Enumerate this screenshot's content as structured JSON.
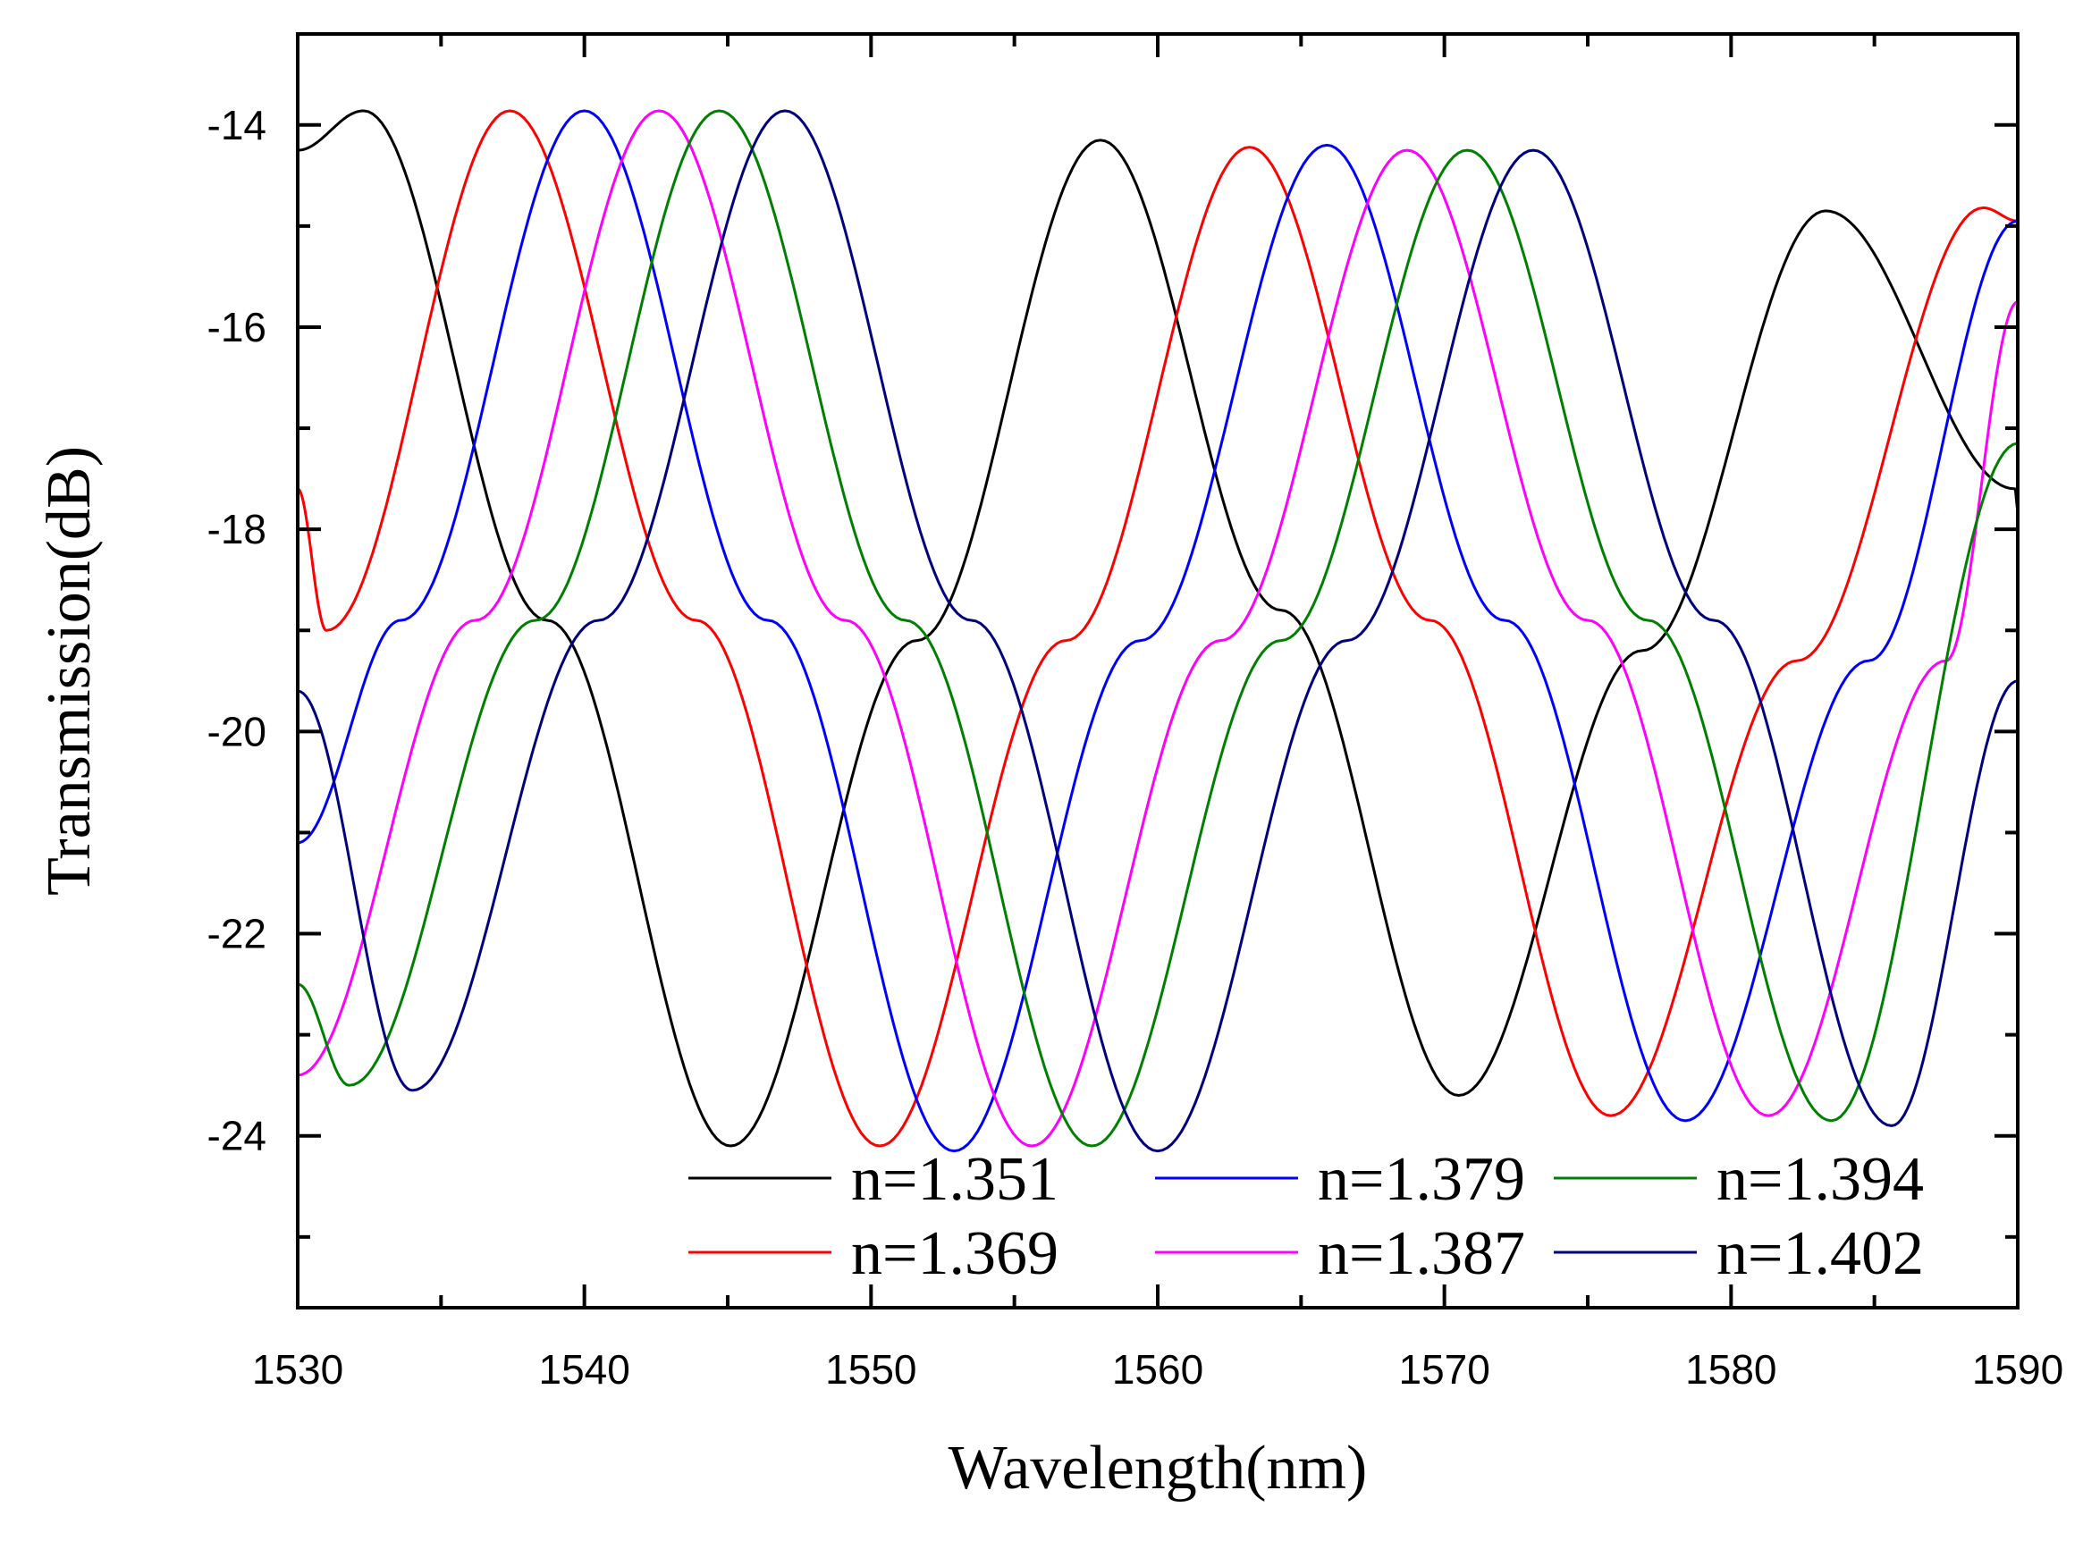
{
  "chart_data": {
    "type": "line",
    "title": "",
    "xlabel": "Wavelength(nm)",
    "ylabel": "Transmission(dB)",
    "xlim": [
      1530,
      1590
    ],
    "ylim": [
      -25.7,
      -13.1
    ],
    "xticks": [
      1530,
      1540,
      1550,
      1560,
      1570,
      1580,
      1590
    ],
    "xtick_labels": [
      "1530",
      "1540",
      "1550",
      "1560",
      "1570",
      "1580",
      "1590"
    ],
    "yticks": [
      -24,
      -22,
      -20,
      -18,
      -16,
      -14
    ],
    "ytick_labels": [
      "-24",
      "-22",
      "-20",
      "-18",
      "-16",
      "-14"
    ],
    "grid": false,
    "legend_position": "bottom-center",
    "series": [
      {
        "name": "n=1.351",
        "color": "#000000",
        "x": [
          1530,
          1532.3,
          1538.7,
          1545.1,
          1551.6,
          1558.0,
          1564.3,
          1570.5,
          1576.9,
          1583.3,
          1589.9,
          1590
        ],
        "y": [
          -14.25,
          -13.86,
          -18.9,
          -24.1,
          -19.1,
          -14.15,
          -18.8,
          -23.6,
          -19.2,
          -14.85,
          -17.6,
          -17.8
        ]
      },
      {
        "name": "n=1.369",
        "color": "#ff0000",
        "x": [
          1530,
          1531.0,
          1537.4,
          1543.9,
          1550.3,
          1556.8,
          1563.2,
          1569.5,
          1575.8,
          1582.3,
          1588.8,
          1590
        ],
        "y": [
          -17.6,
          -19.0,
          -13.86,
          -18.9,
          -24.1,
          -19.1,
          -14.22,
          -18.9,
          -23.8,
          -19.3,
          -14.82,
          -14.95
        ]
      },
      {
        "name": "n=1.379",
        "color": "#0000ff",
        "x": [
          1530,
          1533.6,
          1540.0,
          1546.4,
          1552.9,
          1559.4,
          1565.9,
          1572.1,
          1578.4,
          1584.8,
          1590
        ],
        "y": [
          -21.1,
          -18.9,
          -13.86,
          -18.9,
          -24.15,
          -19.1,
          -14.2,
          -18.9,
          -23.85,
          -19.3,
          -14.95
        ]
      },
      {
        "name": "n=1.387",
        "color": "#ff00ff",
        "x": [
          1530,
          1536.2,
          1542.6,
          1549.1,
          1555.6,
          1562.2,
          1568.7,
          1575.0,
          1581.3,
          1587.5,
          1590
        ],
        "y": [
          -23.4,
          -18.9,
          -13.86,
          -18.9,
          -24.1,
          -19.1,
          -14.25,
          -18.9,
          -23.8,
          -19.3,
          -15.75
        ]
      },
      {
        "name": "n=1.394",
        "color": "#008000",
        "x": [
          1530,
          1531.8,
          1538.3,
          1544.7,
          1551.2,
          1557.7,
          1564.3,
          1570.8,
          1577.1,
          1583.5,
          1590
        ],
        "y": [
          -22.5,
          -23.5,
          -18.9,
          -13.86,
          -18.9,
          -24.1,
          -19.1,
          -14.25,
          -18.9,
          -23.85,
          -17.15
        ]
      },
      {
        "name": "n=1.402",
        "color": "#000080",
        "x": [
          1530,
          1534.0,
          1540.5,
          1547.0,
          1553.5,
          1560.0,
          1566.6,
          1573.1,
          1579.4,
          1585.6,
          1590
        ],
        "y": [
          -19.6,
          -23.55,
          -18.9,
          -13.86,
          -18.9,
          -24.15,
          -19.1,
          -14.25,
          -18.9,
          -23.9,
          -19.5
        ]
      }
    ],
    "legend": [
      {
        "label": "n=1.351",
        "color": "#000000"
      },
      {
        "label": "n=1.369",
        "color": "#ff0000"
      },
      {
        "label": "n=1.379",
        "color": "#0000ff"
      },
      {
        "label": "n=1.387",
        "color": "#ff00ff"
      },
      {
        "label": "n=1.394",
        "color": "#008000"
      },
      {
        "label": "n=1.402",
        "color": "#000080"
      }
    ]
  }
}
